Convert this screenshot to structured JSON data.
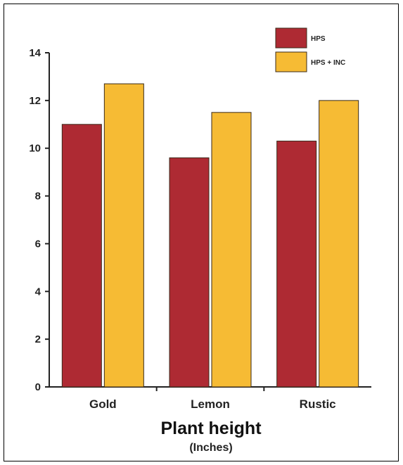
{
  "chart_data": {
    "type": "bar",
    "title": "Plant height",
    "subtitle": "(Inches)",
    "categories": [
      "Gold",
      "Lemon",
      "Rustic"
    ],
    "series": [
      {
        "name": "HPS",
        "color": "#ae2a33",
        "values": [
          11.0,
          9.6,
          10.3
        ]
      },
      {
        "name": "HPS + INC",
        "color": "#f6bb34",
        "values": [
          12.7,
          11.5,
          12.0
        ]
      }
    ],
    "ylim": [
      0,
      14
    ],
    "yticks": [
      0,
      2,
      4,
      6,
      8,
      10,
      12,
      14
    ],
    "grid": false,
    "legend_position": "top-right"
  }
}
